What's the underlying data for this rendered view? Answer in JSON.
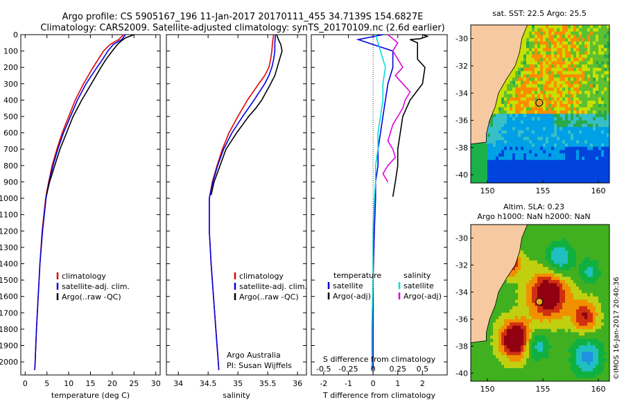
{
  "header": {
    "line1": "Argo profile: CS 5905167_196 11-Jan-2017 20170111_455 34.7139S 154.6827E",
    "line2": "Climatology: CARS2009. Satellite-adjusted climatology: synTS_20170109.nc (2.6d earlier)"
  },
  "footer": {
    "credit": "Argo Australia",
    "pi": "PI: Susan Wijffels",
    "stamp": "©IMOS 16-Jan-2017 20:40:36"
  },
  "colors": {
    "climatology": "#dd0000",
    "satellite": "#0000dd",
    "argo": "#000000",
    "sat_salinity": "#00dddd",
    "argo_salinity": "#dd00dd",
    "land": "#f7c9a0"
  },
  "chart_data": [
    {
      "id": "temperature",
      "type": "line",
      "xlabel": "temperature (deg C)",
      "ylabel": "",
      "xlim": [
        -1,
        31
      ],
      "ylim": [
        2080,
        0
      ],
      "xticks": [
        0,
        5,
        10,
        15,
        20,
        25,
        30
      ],
      "yticks": [
        0,
        100,
        200,
        300,
        400,
        500,
        600,
        700,
        800,
        900,
        1000,
        1100,
        1200,
        1300,
        1400,
        1500,
        1600,
        1700,
        1800,
        1900,
        2000
      ],
      "legend": [
        "climatology",
        "satellite-adj. clim.",
        "Argo(..raw -QC)"
      ],
      "series": [
        {
          "name": "climatology",
          "color": "#dd0000",
          "depth": [
            0,
            30,
            60,
            100,
            150,
            200,
            300,
            400,
            500,
            600,
            700,
            800,
            900,
            1000,
            1200,
            1400,
            1600,
            1800,
            2000,
            2050
          ],
          "values": [
            22.6,
            21.5,
            19.5,
            18.0,
            16.8,
            15.6,
            13.4,
            11.5,
            10.0,
            8.5,
            7.3,
            6.2,
            5.4,
            4.7,
            3.9,
            3.4,
            3.0,
            2.6,
            2.3,
            2.2
          ]
        },
        {
          "name": "satellite-adj. clim.",
          "color": "#0000dd",
          "depth": [
            0,
            30,
            60,
            100,
            150,
            200,
            300,
            400,
            500,
            600,
            700,
            800,
            900,
            1000,
            1200,
            1400,
            1600,
            1800,
            2000,
            2050
          ],
          "values": [
            23.0,
            22.2,
            20.2,
            19.0,
            17.8,
            16.5,
            14.0,
            12.0,
            10.4,
            8.8,
            7.5,
            6.4,
            5.5,
            4.8,
            4.0,
            3.4,
            3.0,
            2.6,
            2.3,
            2.2
          ]
        },
        {
          "name": "Argo(..raw -QC)",
          "color": "#000000",
          "depth": [
            0,
            10,
            20,
            40,
            60,
            100,
            150,
            200,
            300,
            400,
            500,
            600,
            700,
            800,
            900,
            980
          ],
          "values": [
            25.0,
            24.0,
            23.0,
            22.0,
            21.2,
            20.0,
            18.6,
            17.4,
            15.2,
            13.0,
            11.0,
            9.5,
            8.0,
            6.8,
            5.6,
            4.9
          ]
        }
      ]
    },
    {
      "id": "salinity",
      "type": "line",
      "xlabel": "salinity",
      "ylabel": "",
      "xlim": [
        33.8,
        36.15
      ],
      "ylim": [
        2080,
        0
      ],
      "xticks": [
        34,
        34.5,
        35,
        35.5,
        36
      ],
      "xticklabels": [
        "34",
        "34.5",
        "35",
        "35.5",
        "36"
      ],
      "legend": [
        "climatology",
        "satellite-adj. clim.",
        "Argo(..raw -QC)"
      ],
      "series": [
        {
          "name": "climatology",
          "color": "#dd0000",
          "depth": [
            0,
            50,
            100,
            150,
            200,
            250,
            300,
            400,
            500,
            600,
            700,
            800,
            900,
            1000,
            1200,
            1400,
            1600,
            1800,
            2000,
            2050
          ],
          "values": [
            35.6,
            35.58,
            35.57,
            35.55,
            35.52,
            35.45,
            35.35,
            35.16,
            35.0,
            34.85,
            34.74,
            34.65,
            34.57,
            34.52,
            34.52,
            34.55,
            34.59,
            34.63,
            34.67,
            34.68
          ]
        },
        {
          "name": "satellite-adj. clim.",
          "color": "#0000dd",
          "depth": [
            0,
            50,
            100,
            150,
            200,
            250,
            300,
            400,
            500,
            600,
            700,
            800,
            900,
            1000,
            1200,
            1400,
            1600,
            1800,
            2000,
            2050
          ],
          "values": [
            35.63,
            35.62,
            35.62,
            35.6,
            35.57,
            35.52,
            35.45,
            35.27,
            35.08,
            34.9,
            34.76,
            34.66,
            34.58,
            34.52,
            34.52,
            34.55,
            34.59,
            34.63,
            34.67,
            34.68
          ]
        },
        {
          "name": "Argo(..raw -QC)",
          "color": "#000000",
          "depth": [
            0,
            30,
            60,
            100,
            150,
            200,
            250,
            300,
            400,
            450,
            500,
            550,
            600,
            700,
            800,
            900,
            980
          ],
          "values": [
            35.65,
            35.68,
            35.72,
            35.74,
            35.7,
            35.66,
            35.62,
            35.55,
            35.4,
            35.3,
            35.18,
            35.08,
            34.98,
            34.8,
            34.7,
            34.6,
            34.55
          ]
        }
      ]
    },
    {
      "id": "difference",
      "type": "line",
      "xlabel": "T difference from climatology",
      "xlabel2": "S difference from climatology",
      "xlim": [
        -2.5,
        3
      ],
      "ylim": [
        2080,
        0
      ],
      "xticks": [
        -2,
        -1,
        0,
        1,
        2
      ],
      "xticklabels": [
        "-2",
        "-1",
        "0",
        "1",
        "2"
      ],
      "sticks": [
        -2,
        -1,
        0,
        1,
        2
      ],
      "sticklabels": [
        "-0.5",
        "-0.25",
        "0",
        "0.25",
        "0.5"
      ],
      "legend_t_title": "temperature",
      "legend_s_title": "salinity",
      "legend": [
        "satellite",
        "Argo(-adj)",
        "satellite",
        "Argo(-adj)"
      ],
      "series": [
        {
          "name": "satellite",
          "group": "temperature",
          "color": "#0000dd",
          "depth": [
            0,
            30,
            60,
            100,
            200,
            300,
            400,
            500,
            600,
            700,
            800,
            900,
            1000,
            1200,
            1500,
            1800,
            2050
          ],
          "values": [
            0.4,
            -0.6,
            0.0,
            0.8,
            0.8,
            0.6,
            0.5,
            0.4,
            0.3,
            0.2,
            0.2,
            0.1,
            0.1,
            0.05,
            0.0,
            0.0,
            0.0
          ]
        },
        {
          "name": "satellite",
          "group": "salinity",
          "color": "#00dddd",
          "depth": [
            0,
            50,
            100,
            200,
            300,
            400,
            500,
            600,
            700,
            800,
            900,
            1000,
            1200,
            1500,
            1800,
            2050
          ],
          "values": [
            0.1,
            0.2,
            0.3,
            0.5,
            0.4,
            0.4,
            0.3,
            0.2,
            0.2,
            0.1,
            0.1,
            0.05,
            0.0,
            0.0,
            -0.05,
            -0.05
          ]
        },
        {
          "name": "Argo(-adj)",
          "group": "temperature",
          "color": "#000000",
          "depth": [
            0,
            10,
            25,
            30,
            50,
            100,
            150,
            200,
            300,
            400,
            500,
            600,
            700,
            800,
            900,
            990
          ],
          "values": [
            2.0,
            2.2,
            1.9,
            1.5,
            1.8,
            1.8,
            1.8,
            2.1,
            2.0,
            1.5,
            1.2,
            1.1,
            1.0,
            1.0,
            0.9,
            0.8
          ]
        },
        {
          "name": "Argo(-adj)",
          "group": "salinity",
          "color": "#dd00dd",
          "depth": [
            0,
            50,
            100,
            150,
            200,
            250,
            300,
            350,
            400,
            450,
            500,
            550,
            600,
            650,
            700,
            750,
            800,
            850,
            900
          ],
          "values": [
            0.6,
            1.0,
            0.8,
            1.0,
            1.2,
            0.9,
            1.2,
            1.5,
            1.3,
            1.2,
            1.0,
            0.8,
            0.7,
            0.6,
            0.8,
            0.9,
            0.6,
            0.4,
            0.6
          ]
        }
      ]
    },
    {
      "id": "sst_map",
      "type": "heatmap",
      "title": "sat. SST: 22.5  Argo: 25.5",
      "xlim": [
        148.5,
        161
      ],
      "ylim": [
        -40.6,
        -29
      ],
      "xticks": [
        150,
        155,
        160
      ],
      "yticks": [
        -30,
        -32,
        -34,
        -36,
        -38,
        -40
      ],
      "float_lon": 154.68,
      "float_lat": -34.71
    },
    {
      "id": "sla_map",
      "type": "heatmap",
      "title": "Altim. SLA: 0.23",
      "subtitle": "Argo h1000: NaN h2000: NaN",
      "xlim": [
        148.5,
        161
      ],
      "ylim": [
        -40.6,
        -29
      ],
      "xticks": [
        150,
        155,
        160
      ],
      "yticks": [
        -30,
        -32,
        -34,
        -36,
        -38,
        -40
      ],
      "float_lon": 154.68,
      "float_lat": -34.71
    }
  ]
}
